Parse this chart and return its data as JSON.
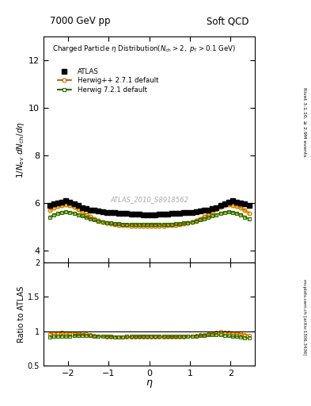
{
  "title_left": "7000 GeV pp",
  "title_right": "Soft QCD",
  "right_label_main": "Rivet 3.1.10, ≥ 2.9M events",
  "right_label_ratio": "mcplots.cern.ch [arXiv:1306.3436]",
  "watermark": "ATLAS_2010_S8918562",
  "ylim_main": [
    3.5,
    13.0
  ],
  "ylim_ratio": [
    0.5,
    2.0
  ],
  "yticks_main": [
    4,
    6,
    8,
    10,
    12
  ],
  "yticks_ratio": [
    0.5,
    1.0,
    1.5,
    2.0
  ],
  "xlim": [
    -2.6,
    2.6
  ],
  "xticks": [
    -2,
    -1,
    0,
    1,
    2
  ],
  "atlas_eta": [
    -2.45,
    -2.35,
    -2.25,
    -2.15,
    -2.05,
    -1.95,
    -1.85,
    -1.75,
    -1.65,
    -1.55,
    -1.45,
    -1.35,
    -1.25,
    -1.15,
    -1.05,
    -0.95,
    -0.85,
    -0.75,
    -0.65,
    -0.55,
    -0.45,
    -0.35,
    -0.25,
    -0.15,
    -0.05,
    0.05,
    0.15,
    0.25,
    0.35,
    0.45,
    0.55,
    0.65,
    0.75,
    0.85,
    0.95,
    1.05,
    1.15,
    1.25,
    1.35,
    1.45,
    1.55,
    1.65,
    1.75,
    1.85,
    1.95,
    2.05,
    2.15,
    2.25,
    2.35,
    2.45
  ],
  "atlas_vals": [
    5.92,
    5.98,
    6.02,
    6.05,
    6.1,
    6.05,
    5.98,
    5.9,
    5.82,
    5.76,
    5.72,
    5.69,
    5.67,
    5.64,
    5.62,
    5.6,
    5.59,
    5.58,
    5.57,
    5.56,
    5.55,
    5.54,
    5.53,
    5.52,
    5.52,
    5.52,
    5.52,
    5.53,
    5.54,
    5.55,
    5.56,
    5.57,
    5.58,
    5.59,
    5.6,
    5.62,
    5.64,
    5.67,
    5.69,
    5.72,
    5.76,
    5.82,
    5.9,
    5.98,
    6.05,
    6.1,
    6.05,
    6.02,
    5.98,
    5.92
  ],
  "atlas_err": [
    0.08,
    0.08,
    0.08,
    0.08,
    0.08,
    0.08,
    0.08,
    0.08,
    0.08,
    0.08,
    0.07,
    0.07,
    0.07,
    0.07,
    0.07,
    0.07,
    0.07,
    0.07,
    0.07,
    0.07,
    0.07,
    0.07,
    0.07,
    0.07,
    0.07,
    0.07,
    0.07,
    0.07,
    0.07,
    0.07,
    0.07,
    0.07,
    0.07,
    0.07,
    0.07,
    0.07,
    0.07,
    0.07,
    0.07,
    0.07,
    0.08,
    0.08,
    0.08,
    0.08,
    0.08,
    0.08,
    0.08,
    0.08,
    0.08,
    0.08
  ],
  "herwig_eta": [
    -2.45,
    -2.35,
    -2.25,
    -2.15,
    -2.05,
    -1.95,
    -1.85,
    -1.75,
    -1.65,
    -1.55,
    -1.45,
    -1.35,
    -1.25,
    -1.15,
    -1.05,
    -0.95,
    -0.85,
    -0.75,
    -0.65,
    -0.55,
    -0.45,
    -0.35,
    -0.25,
    -0.15,
    -0.05,
    0.05,
    0.15,
    0.25,
    0.35,
    0.45,
    0.55,
    0.65,
    0.75,
    0.85,
    0.95,
    1.05,
    1.15,
    1.25,
    1.35,
    1.45,
    1.55,
    1.65,
    1.75,
    1.85,
    1.95,
    2.05,
    2.15,
    2.25,
    2.35,
    2.45
  ],
  "herwig_vals": [
    5.7,
    5.82,
    5.88,
    5.92,
    5.94,
    5.9,
    5.84,
    5.74,
    5.63,
    5.52,
    5.43,
    5.35,
    5.28,
    5.22,
    5.17,
    5.13,
    5.1,
    5.08,
    5.07,
    5.06,
    5.05,
    5.05,
    5.04,
    5.04,
    5.04,
    5.04,
    5.04,
    5.05,
    5.05,
    5.06,
    5.07,
    5.08,
    5.1,
    5.13,
    5.17,
    5.22,
    5.28,
    5.35,
    5.43,
    5.52,
    5.63,
    5.74,
    5.84,
    5.9,
    5.94,
    5.92,
    5.88,
    5.82,
    5.7,
    5.58
  ],
  "herwig_err": [
    0.05,
    0.05,
    0.05,
    0.05,
    0.05,
    0.05,
    0.05,
    0.05,
    0.05,
    0.05,
    0.05,
    0.05,
    0.05,
    0.05,
    0.05,
    0.05,
    0.05,
    0.05,
    0.05,
    0.05,
    0.05,
    0.05,
    0.05,
    0.05,
    0.05,
    0.05,
    0.05,
    0.05,
    0.05,
    0.05,
    0.05,
    0.05,
    0.05,
    0.05,
    0.05,
    0.05,
    0.05,
    0.05,
    0.05,
    0.05,
    0.05,
    0.05,
    0.05,
    0.05,
    0.05,
    0.05,
    0.05,
    0.05,
    0.05,
    0.05
  ],
  "herwig7_vals": [
    5.42,
    5.52,
    5.58,
    5.62,
    5.64,
    5.62,
    5.58,
    5.52,
    5.46,
    5.4,
    5.34,
    5.29,
    5.25,
    5.21,
    5.18,
    5.16,
    5.14,
    5.13,
    5.12,
    5.12,
    5.11,
    5.11,
    5.11,
    5.11,
    5.11,
    5.11,
    5.11,
    5.11,
    5.11,
    5.12,
    5.12,
    5.13,
    5.14,
    5.16,
    5.18,
    5.21,
    5.25,
    5.29,
    5.34,
    5.4,
    5.46,
    5.52,
    5.58,
    5.62,
    5.64,
    5.62,
    5.58,
    5.52,
    5.42,
    5.34
  ],
  "herwig7_err": [
    0.04,
    0.04,
    0.04,
    0.04,
    0.04,
    0.04,
    0.04,
    0.04,
    0.04,
    0.04,
    0.04,
    0.04,
    0.04,
    0.04,
    0.04,
    0.04,
    0.04,
    0.04,
    0.04,
    0.04,
    0.04,
    0.04,
    0.04,
    0.04,
    0.04,
    0.04,
    0.04,
    0.04,
    0.04,
    0.04,
    0.04,
    0.04,
    0.04,
    0.04,
    0.04,
    0.04,
    0.04,
    0.04,
    0.04,
    0.04,
    0.04,
    0.04,
    0.04,
    0.04,
    0.04,
    0.04,
    0.04,
    0.04,
    0.04,
    0.04
  ],
  "atlas_color": "#000000",
  "herwig_color": "#cc6600",
  "herwig7_color": "#336600",
  "herwig_band_color": "#ffcc00",
  "herwig7_band_color": "#99cc44",
  "background_color": "#ffffff",
  "legend_labels": [
    "ATLAS",
    "Herwig++ 2.7.1 default",
    "Herwig 7.2.1 default"
  ]
}
